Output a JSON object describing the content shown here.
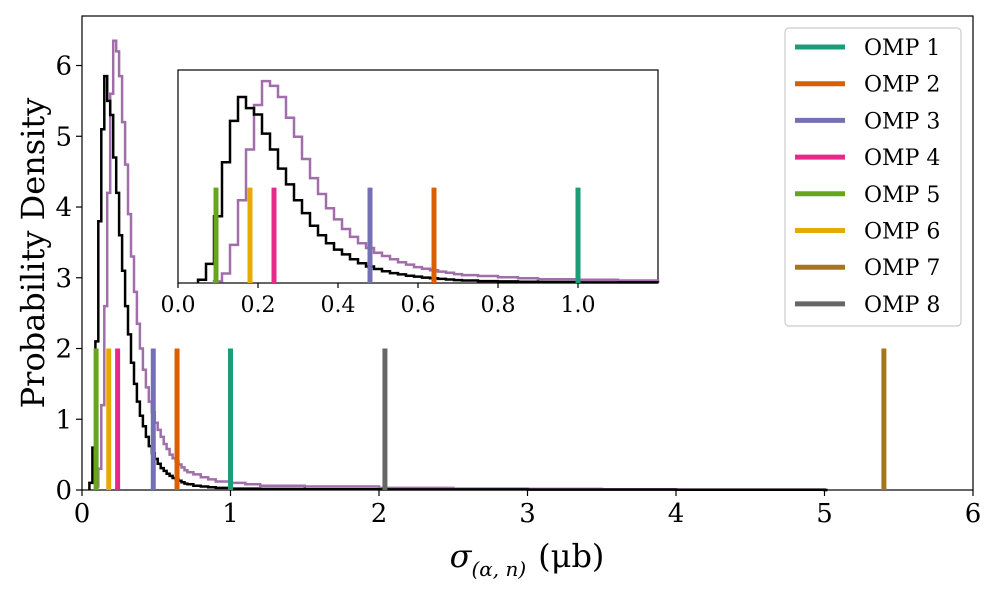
{
  "chart_data": {
    "type": "histogram",
    "xlabel_main": "σ",
    "xlabel_sub": "(α, n)",
    "xlabel_unit": "(μb)",
    "ylabel": "Probability Density",
    "xlim": [
      0,
      6
    ],
    "ylim": [
      0,
      6.7
    ],
    "x_ticks": [
      0,
      1,
      2,
      3,
      4,
      5,
      6
    ],
    "x_tick_labels": [
      "0",
      "1",
      "2",
      "3",
      "4",
      "5",
      "6"
    ],
    "y_ticks": [
      0,
      1,
      2,
      3,
      4,
      5,
      6
    ],
    "y_tick_labels": [
      "0",
      "1",
      "2",
      "3",
      "4",
      "5",
      "6"
    ],
    "histograms": [
      {
        "name": "distribution-black",
        "color": "#000000",
        "bins": [
          [
            0.05,
            0.1
          ],
          [
            0.07,
            0.6
          ],
          [
            0.09,
            2.1
          ],
          [
            0.11,
            3.8
          ],
          [
            0.13,
            5.1
          ],
          [
            0.15,
            5.85
          ],
          [
            0.17,
            5.5
          ],
          [
            0.19,
            5.3
          ],
          [
            0.21,
            4.7
          ],
          [
            0.23,
            4.2
          ],
          [
            0.25,
            3.6
          ],
          [
            0.27,
            3.1
          ],
          [
            0.29,
            2.6
          ],
          [
            0.31,
            2.2
          ],
          [
            0.33,
            1.8
          ],
          [
            0.35,
            1.5
          ],
          [
            0.37,
            1.25
          ],
          [
            0.39,
            1.05
          ],
          [
            0.41,
            0.9
          ],
          [
            0.43,
            0.75
          ],
          [
            0.45,
            0.62
          ],
          [
            0.47,
            0.52
          ],
          [
            0.49,
            0.44
          ],
          [
            0.51,
            0.37
          ],
          [
            0.53,
            0.31
          ],
          [
            0.55,
            0.27
          ],
          [
            0.57,
            0.23
          ],
          [
            0.59,
            0.2
          ],
          [
            0.61,
            0.17
          ],
          [
            0.63,
            0.15
          ],
          [
            0.65,
            0.13
          ],
          [
            0.67,
            0.11
          ],
          [
            0.69,
            0.09
          ],
          [
            0.71,
            0.08
          ],
          [
            0.75,
            0.06
          ],
          [
            0.8,
            0.05
          ],
          [
            0.85,
            0.04
          ],
          [
            0.9,
            0.03
          ],
          [
            1.0,
            0.02
          ],
          [
            1.2,
            0.015
          ],
          [
            1.5,
            0.01
          ],
          [
            2.0,
            0.008
          ],
          [
            3.0,
            0.005
          ],
          [
            4.0,
            0.003
          ],
          [
            5.0,
            0.0
          ]
        ]
      },
      {
        "name": "distribution-purple",
        "color": "#a06ea8",
        "bins": [
          [
            0.09,
            0.05
          ],
          [
            0.11,
            0.3
          ],
          [
            0.13,
            1.2
          ],
          [
            0.15,
            2.6
          ],
          [
            0.17,
            4.2
          ],
          [
            0.19,
            5.6
          ],
          [
            0.21,
            6.35
          ],
          [
            0.23,
            6.2
          ],
          [
            0.25,
            5.85
          ],
          [
            0.27,
            5.2
          ],
          [
            0.29,
            4.6
          ],
          [
            0.31,
            3.9
          ],
          [
            0.33,
            3.3
          ],
          [
            0.35,
            2.8
          ],
          [
            0.37,
            2.35
          ],
          [
            0.39,
            2.0
          ],
          [
            0.41,
            1.7
          ],
          [
            0.43,
            1.45
          ],
          [
            0.45,
            1.25
          ],
          [
            0.47,
            1.1
          ],
          [
            0.49,
            0.95
          ],
          [
            0.51,
            0.85
          ],
          [
            0.53,
            0.75
          ],
          [
            0.55,
            0.65
          ],
          [
            0.57,
            0.58
          ],
          [
            0.59,
            0.5
          ],
          [
            0.61,
            0.45
          ],
          [
            0.63,
            0.4
          ],
          [
            0.65,
            0.36
          ],
          [
            0.67,
            0.32
          ],
          [
            0.69,
            0.28
          ],
          [
            0.71,
            0.25
          ],
          [
            0.75,
            0.22
          ],
          [
            0.8,
            0.18
          ],
          [
            0.85,
            0.15
          ],
          [
            0.9,
            0.12
          ],
          [
            1.0,
            0.1
          ],
          [
            1.1,
            0.08
          ],
          [
            1.2,
            0.06
          ],
          [
            1.5,
            0.05
          ],
          [
            2.0,
            0.03
          ],
          [
            2.5,
            0.02
          ],
          [
            3.0,
            0.015
          ],
          [
            3.5,
            0.01
          ],
          [
            4.0,
            0.005
          ],
          [
            5.0,
            0.0
          ]
        ]
      }
    ],
    "vlines": [
      {
        "name": "OMP 1",
        "x": 1.0,
        "color": "#1b9e77"
      },
      {
        "name": "OMP 2",
        "x": 0.64,
        "color": "#d95f02"
      },
      {
        "name": "OMP 3",
        "x": 0.48,
        "color": "#7570b3"
      },
      {
        "name": "OMP 4",
        "x": 0.24,
        "color": "#e7298a"
      },
      {
        "name": "OMP 5",
        "x": 0.095,
        "color": "#66a61e"
      },
      {
        "name": "OMP 6",
        "x": 0.18,
        "color": "#e6ab02"
      },
      {
        "name": "OMP 7",
        "x": 5.4,
        "color": "#a6761d"
      },
      {
        "name": "OMP 8",
        "x": 2.04,
        "color": "#666666"
      }
    ],
    "vline_height": 2.0,
    "inset": {
      "xlim": [
        0,
        1.2
      ],
      "ylim": [
        0,
        6.7
      ],
      "x_ticks": [
        0.0,
        0.2,
        0.4,
        0.6,
        0.8,
        1.0
      ],
      "x_tick_labels": [
        "0.0",
        "0.2",
        "0.4",
        "0.6",
        "0.8",
        "1.0"
      ],
      "vline_height": 3.0
    },
    "legend": {
      "position": "top-right",
      "entries": [
        "OMP 1",
        "OMP 2",
        "OMP 3",
        "OMP 4",
        "OMP 5",
        "OMP 6",
        "OMP 7",
        "OMP 8"
      ]
    }
  }
}
